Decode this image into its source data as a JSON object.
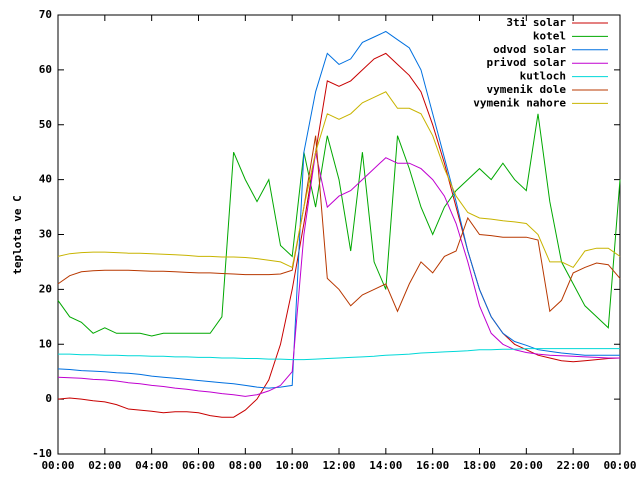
{
  "chart_data": {
    "type": "line",
    "ylabel": "teplota ve C",
    "x": [
      0,
      0.5,
      1,
      1.5,
      2,
      2.5,
      3,
      3.5,
      4,
      4.5,
      5,
      5.5,
      6,
      6.5,
      7,
      7.5,
      8,
      8.5,
      9,
      9.5,
      10,
      10.5,
      11,
      11.5,
      12,
      12.5,
      13,
      13.5,
      14,
      14.5,
      15,
      15.5,
      16,
      16.5,
      17,
      17.5,
      18,
      18.5,
      19,
      19.5,
      20,
      20.5,
      21,
      21.5,
      22,
      22.5,
      23,
      23.5,
      24
    ],
    "xlim": [
      0,
      24
    ],
    "xticks": [
      {
        "value": 0,
        "label": "00:00"
      },
      {
        "value": 2,
        "label": "02:00"
      },
      {
        "value": 4,
        "label": "04:00"
      },
      {
        "value": 6,
        "label": "06:00"
      },
      {
        "value": 8,
        "label": "08:00"
      },
      {
        "value": 10,
        "label": "10:00"
      },
      {
        "value": 12,
        "label": "12:00"
      },
      {
        "value": 14,
        "label": "14:00"
      },
      {
        "value": 16,
        "label": "16:00"
      },
      {
        "value": 18,
        "label": "18:00"
      },
      {
        "value": 20,
        "label": "20:00"
      },
      {
        "value": 22,
        "label": "22:00"
      },
      {
        "value": 24,
        "label": "00:00"
      }
    ],
    "ylim": [
      -10,
      70
    ],
    "yticks": [
      -10,
      0,
      10,
      20,
      30,
      40,
      50,
      60,
      70
    ],
    "legend": "top-right",
    "series": [
      {
        "name": "3ti solar",
        "color": "#c80000",
        "values": [
          0,
          0.2,
          0,
          -0.3,
          -0.5,
          -1,
          -1.8,
          -2,
          -2.2,
          -2.5,
          -2.3,
          -2.3,
          -2.5,
          -3,
          -3.3,
          -3.3,
          -2,
          0,
          3.5,
          10,
          20,
          32,
          45,
          58,
          57,
          58,
          60,
          62,
          63,
          61,
          59,
          56,
          50,
          43,
          35,
          27,
          20,
          15,
          12,
          10,
          9,
          8,
          7.5,
          7,
          6.8,
          7,
          7.2,
          7.4,
          7.5
        ]
      },
      {
        "name": "kotel",
        "color": "#00a800",
        "values": [
          18,
          15,
          14,
          12,
          13,
          12,
          12,
          12,
          11.5,
          12,
          12,
          12,
          12,
          12,
          15,
          45,
          40,
          36,
          40,
          28,
          26,
          45,
          35,
          48,
          40,
          27,
          45,
          25,
          20,
          48,
          42,
          35,
          30,
          35,
          38,
          40,
          42,
          40,
          43,
          40,
          38,
          52,
          36,
          25,
          21,
          17,
          15,
          13,
          40
        ]
      },
      {
        "name": "odvod solar",
        "color": "#0070e0",
        "values": [
          5.5,
          5.4,
          5.2,
          5.1,
          5,
          4.8,
          4.7,
          4.5,
          4.2,
          4,
          3.8,
          3.6,
          3.4,
          3.2,
          3,
          2.8,
          2.5,
          2.2,
          2,
          2.2,
          2.5,
          45,
          56,
          63,
          61,
          62,
          65,
          66,
          67,
          65.5,
          64,
          60,
          52,
          44,
          36,
          27,
          20,
          15,
          12,
          10.5,
          9.8,
          9,
          8.7,
          8.4,
          8.2,
          8,
          8,
          8,
          8
        ]
      },
      {
        "name": "privod solar",
        "color": "#c000d0",
        "values": [
          4,
          3.9,
          3.8,
          3.6,
          3.5,
          3.3,
          3,
          2.8,
          2.5,
          2.3,
          2,
          1.8,
          1.5,
          1.3,
          1,
          0.8,
          0.5,
          0.8,
          1.5,
          2.5,
          5,
          30,
          45,
          35,
          37,
          38,
          40,
          42,
          44,
          43,
          43,
          42,
          40,
          37,
          32,
          25,
          17,
          12,
          10,
          9,
          8.5,
          8.2,
          8,
          7.9,
          7.8,
          7.7,
          7.6,
          7.5,
          7.5
        ]
      },
      {
        "name": "kutloch",
        "color": "#00d8d8",
        "values": [
          8.2,
          8.2,
          8.1,
          8.1,
          8,
          8,
          7.9,
          7.9,
          7.8,
          7.8,
          7.7,
          7.7,
          7.6,
          7.6,
          7.5,
          7.5,
          7.4,
          7.4,
          7.3,
          7.3,
          7.2,
          7.2,
          7.3,
          7.4,
          7.5,
          7.6,
          7.7,
          7.8,
          8,
          8.1,
          8.2,
          8.4,
          8.5,
          8.6,
          8.7,
          8.8,
          9,
          9,
          9.1,
          9.1,
          9.2,
          9.2,
          9.2,
          9.2,
          9.2,
          9.2,
          9.2,
          9.2,
          9.2
        ]
      },
      {
        "name": "vymenik dole",
        "color": "#b83800",
        "values": [
          21,
          22.5,
          23.2,
          23.4,
          23.5,
          23.5,
          23.5,
          23.4,
          23.3,
          23.3,
          23.2,
          23.1,
          23,
          23,
          22.9,
          22.8,
          22.7,
          22.7,
          22.7,
          22.8,
          23.5,
          35,
          48,
          22,
          20,
          17,
          19,
          20,
          21,
          16,
          21,
          25,
          23,
          26,
          27,
          33,
          30,
          29.8,
          29.5,
          29.5,
          29.5,
          29,
          16,
          18,
          23,
          24,
          24.8,
          24.5,
          22
        ]
      },
      {
        "name": "vymenik nahore",
        "color": "#c8b400",
        "values": [
          26,
          26.5,
          26.7,
          26.8,
          26.8,
          26.7,
          26.6,
          26.6,
          26.5,
          26.4,
          26.3,
          26.2,
          26,
          26,
          25.9,
          25.9,
          25.8,
          25.6,
          25.3,
          25,
          24,
          35,
          45,
          52,
          51,
          52,
          54,
          55,
          56,
          53,
          53,
          52,
          48,
          42,
          37,
          34,
          33,
          32.8,
          32.5,
          32.3,
          32,
          30,
          25,
          25,
          24,
          27,
          27.5,
          27.5,
          26
        ]
      }
    ]
  }
}
